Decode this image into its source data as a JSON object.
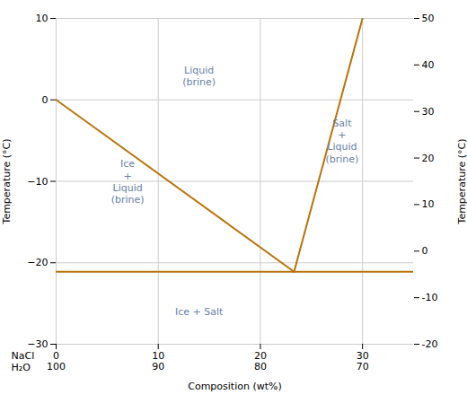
{
  "chart_data": {
    "type": "line",
    "xlabel": "Composition (wt%)",
    "ylabel": "Temperature (°C)",
    "y2label": "Temperature (°C)",
    "xlim": [
      0,
      35
    ],
    "xticks": [
      0,
      10,
      20,
      30
    ],
    "ylim": [
      -30,
      10
    ],
    "yticks": [
      -30,
      -20,
      -10,
      0,
      10
    ],
    "y2lim": [
      -20,
      50
    ],
    "y2ticks": [
      -20,
      -10,
      0,
      10,
      20,
      30,
      40,
      50
    ],
    "grid": true,
    "tick_rows": [
      {
        "label": "NaCl",
        "labels": [
          "0",
          "10",
          "20",
          "30"
        ]
      },
      {
        "label": "H₂O",
        "labels": [
          "100",
          "90",
          "80",
          "70"
        ]
      }
    ],
    "series": [
      {
        "color": "#B8730A",
        "x": [
          0,
          23.3
        ],
        "values": [
          0,
          -21.1
        ]
      },
      {
        "color": "#B8730A",
        "x": [
          23.3,
          30.0
        ],
        "values": [
          -21.1,
          10
        ]
      },
      {
        "color": "#B8730A",
        "x": [
          0,
          35
        ],
        "values": [
          -21.1,
          -21.1
        ]
      }
    ],
    "annotations": [
      {
        "text": "Liquid\n(brine)",
        "x": 14,
        "y": 3,
        "color": "#6b7fa3"
      },
      {
        "text": "Ice\n+\nLiquid\n(brine)",
        "x": 7,
        "y": -10,
        "color": "#6b7fa3"
      },
      {
        "text": "Salt\n+\nLiquid\n(brine)",
        "x": 28,
        "y": -5,
        "color": "#6b7fa3"
      },
      {
        "text": "Ice + Salt",
        "x": 14,
        "y": -26,
        "color": "#6b7fa3"
      }
    ]
  }
}
